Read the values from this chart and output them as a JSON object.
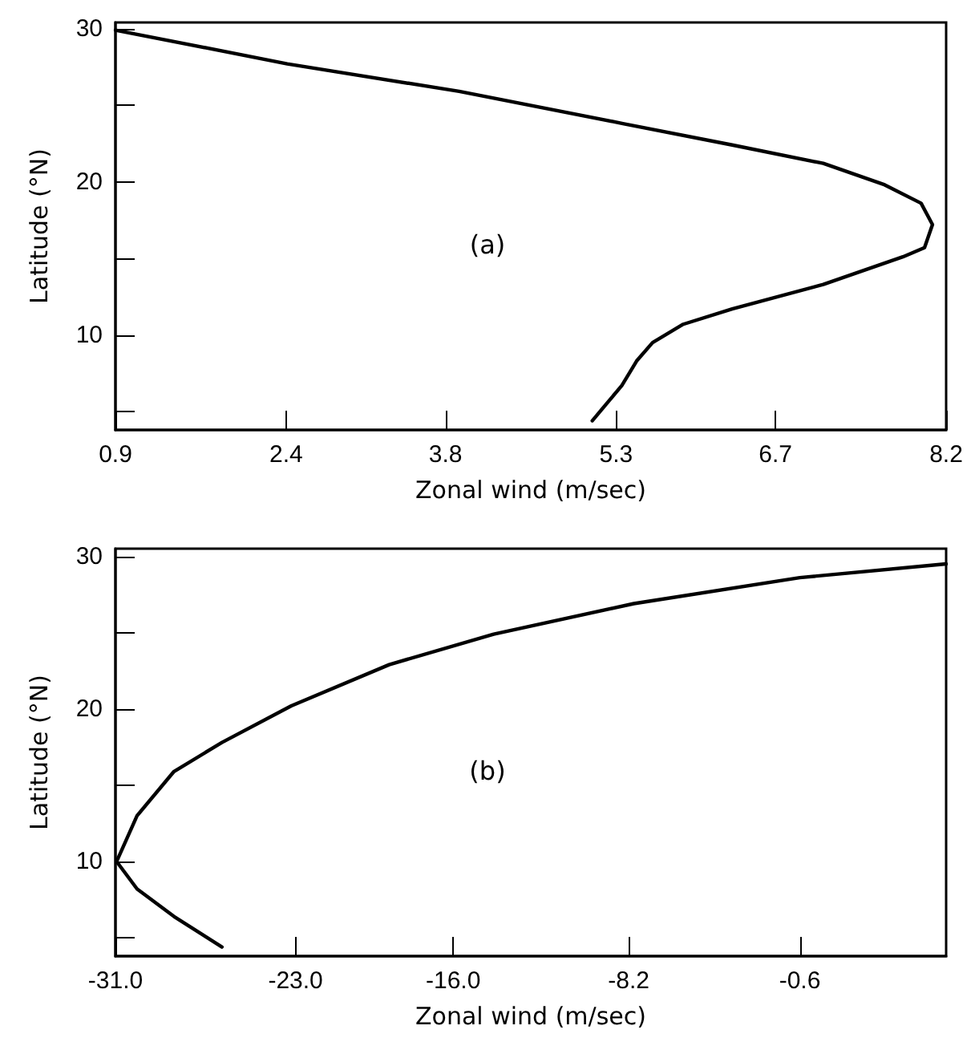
{
  "chart_data": [
    {
      "type": "line",
      "xlabel": "Zonal wind (m/sec)",
      "ylabel": "Latitude (°N)",
      "annotations": [
        "(a)"
      ],
      "xlim": [
        0.9,
        8.2
      ],
      "ylim": [
        3.8,
        30.4
      ],
      "xticks": [
        0.9,
        2.4,
        3.8,
        5.3,
        6.7,
        8.2
      ],
      "yticks": [
        {
          "value": 5,
          "label": null
        },
        10,
        {
          "value": 15,
          "label": null
        },
        20,
        {
          "value": 25,
          "label": null
        },
        30
      ],
      "grid": false,
      "marker": "none",
      "line_style": "solid",
      "series": [
        {
          "color": "#000000",
          "x": [
            0.9,
            2.41,
            3.92,
            5.36,
            6.32,
            7.12,
            7.66,
            7.98,
            8.08,
            8.01,
            7.82,
            7.12,
            6.32,
            5.89,
            5.62,
            5.48,
            5.35,
            5.09
          ],
          "values": [
            29.9,
            27.7,
            25.9,
            23.8,
            22.4,
            21.2,
            19.8,
            18.6,
            17.2,
            15.7,
            15.1,
            13.3,
            11.7,
            10.7,
            9.5,
            8.3,
            6.7,
            4.4
          ]
        }
      ]
    },
    {
      "type": "line",
      "xlabel": "Zonal wind (m/sec)",
      "ylabel": "Latitude (°N)",
      "annotations": [
        "(b)"
      ],
      "xlim": [
        -31.0,
        5.9
      ],
      "ylim": [
        3.8,
        30.5
      ],
      "xticks": [
        {
          "value": -31,
          "label": "-31.0"
        },
        {
          "value": -23,
          "label": "-23.0"
        },
        {
          "value": -16,
          "label": "-16.0"
        },
        -8.2,
        -0.6
      ],
      "yticks": [
        {
          "value": 5,
          "label": null
        },
        10,
        {
          "value": 15,
          "label": null
        },
        20,
        {
          "value": 25,
          "label": null
        },
        30
      ],
      "grid": false,
      "marker": "none",
      "line_style": "solid",
      "series": [
        {
          "color": "#000000",
          "x": [
            -26.27,
            -28.4,
            -30.04,
            -30.95,
            -30.04,
            -28.4,
            -26.27,
            -23.19,
            -18.84,
            -14.2,
            -7.97,
            -0.6,
            5.9
          ],
          "values": [
            4.4,
            6.4,
            8.2,
            10.0,
            13.0,
            15.9,
            17.8,
            20.2,
            22.9,
            24.9,
            26.9,
            28.6,
            29.5
          ]
        }
      ]
    }
  ]
}
